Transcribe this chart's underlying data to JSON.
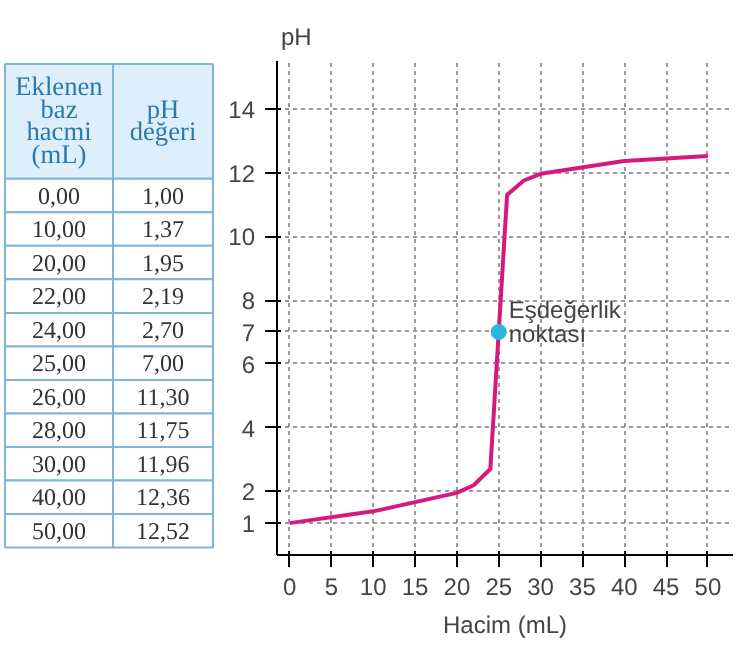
{
  "chart_data": {
    "type": "line",
    "xlabel": "Hacim (mL)",
    "ylabel": "pH",
    "x": [
      0,
      10,
      20,
      22,
      24,
      25,
      26,
      28,
      30,
      40,
      50
    ],
    "series": [
      {
        "color": "#d6197f",
        "values": [
          1.0,
          1.37,
          1.95,
          2.19,
          2.7,
          7.0,
          11.3,
          11.75,
          11.96,
          12.36,
          12.52
        ]
      },
      {
        "type": "scatter",
        "color": "#29b6e0",
        "x": [
          25
        ],
        "values": [
          7
        ]
      }
    ],
    "xlim": [
      -1.5,
      53
    ],
    "ylim": [
      0,
      15.5
    ],
    "xticks": [
      0,
      5,
      10,
      15,
      20,
      25,
      30,
      35,
      40,
      45,
      50
    ],
    "yticks": [
      1,
      2,
      4,
      6,
      7,
      8,
      10,
      12,
      14
    ],
    "grid": true,
    "line_style": "solid",
    "annotations": [
      "Eklenen baz hacmi (mL)",
      "pH değeri",
      "0,00",
      "10,00",
      "20,00",
      "22,00",
      "24,00",
      "25,00",
      "26,00",
      "28,00",
      "30,00",
      "40,00",
      "50,00",
      "1,00",
      "1,37",
      "1,95",
      "2,19",
      "2,70",
      "7,00",
      "11,30",
      "11,75",
      "11,96",
      "12,36",
      "12,52",
      {
        "text": "Eşdeğerlik noktası",
        "x": 25,
        "y": 7
      }
    ]
  }
}
